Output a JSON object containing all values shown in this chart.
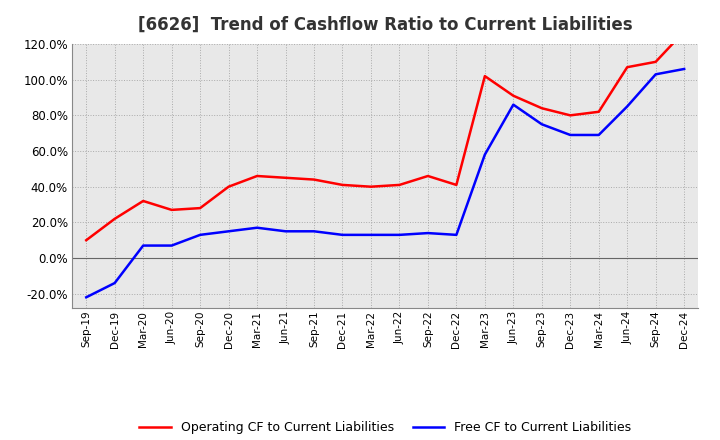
{
  "title": "[6626]  Trend of Cashflow Ratio to Current Liabilities",
  "title_color": "#333333",
  "background_color": "#ffffff",
  "plot_background_color": "#e8e8e8",
  "grid_color": "#aaaaaa",
  "grid_style": "dotted",
  "ylim": [
    -0.28,
    0.145
  ],
  "ylabel_ticks": [
    -0.2,
    0.0,
    0.2,
    0.4,
    0.6,
    0.8,
    1.0,
    1.2
  ],
  "x_labels": [
    "Sep-19",
    "Dec-19",
    "Mar-20",
    "Jun-20",
    "Sep-20",
    "Dec-20",
    "Mar-21",
    "Jun-21",
    "Sep-21",
    "Dec-21",
    "Mar-22",
    "Jun-22",
    "Sep-22",
    "Dec-22",
    "Mar-23",
    "Jun-23",
    "Sep-23",
    "Dec-23",
    "Mar-24",
    "Jun-24",
    "Sep-24",
    "Dec-24"
  ],
  "operating_cf": [
    0.1,
    0.22,
    0.32,
    0.27,
    0.28,
    0.4,
    0.46,
    0.45,
    0.44,
    0.41,
    0.4,
    0.41,
    0.46,
    0.41,
    1.02,
    0.91,
    0.84,
    0.8,
    0.82,
    1.07,
    1.1,
    1.27
  ],
  "free_cf": [
    -0.22,
    -0.14,
    0.07,
    0.07,
    0.13,
    0.15,
    0.17,
    0.15,
    0.15,
    0.13,
    0.13,
    0.13,
    0.14,
    0.13,
    0.58,
    0.86,
    0.75,
    0.69,
    0.69,
    0.85,
    1.03,
    1.06
  ],
  "operating_cf_color": "#ff0000",
  "free_cf_color": "#0000ff",
  "line_width": 1.8,
  "legend_labels": [
    "Operating CF to Current Liabilities",
    "Free CF to Current Liabilities"
  ]
}
